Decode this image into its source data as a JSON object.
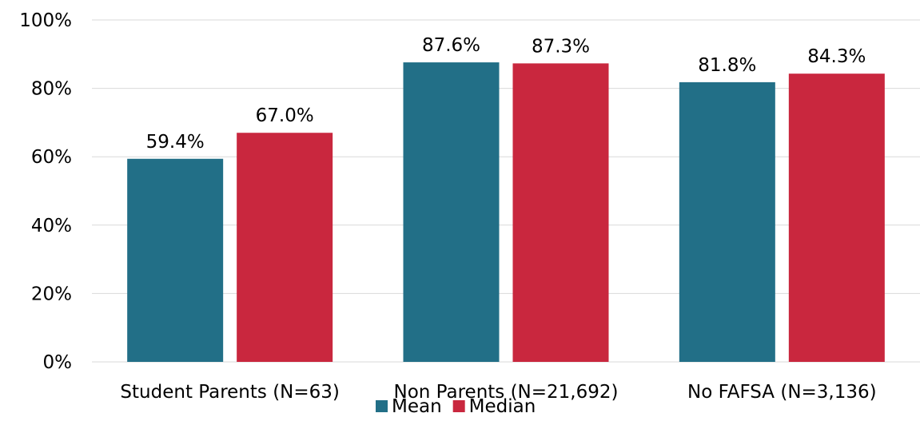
{
  "chart_data": {
    "type": "bar",
    "categories": [
      "Student Parents (N=63)",
      "Non Parents (N=21,692)",
      "No FAFSA (N=3,136)"
    ],
    "series": [
      {
        "name": "Mean",
        "values": [
          59.4,
          87.6,
          81.8
        ],
        "labels": [
          "59.4%",
          "87.6%",
          "81.8%"
        ],
        "color": "#226f87"
      },
      {
        "name": "Median",
        "values": [
          67.0,
          87.3,
          84.3
        ],
        "labels": [
          "67.0%",
          "87.3%",
          "84.3%"
        ],
        "color": "#c9273e"
      }
    ],
    "y_ticks": [
      "0%",
      "20%",
      "40%",
      "60%",
      "80%",
      "100%"
    ],
    "ylim": [
      0,
      100
    ],
    "grid": true,
    "legend": "bottom-center"
  }
}
